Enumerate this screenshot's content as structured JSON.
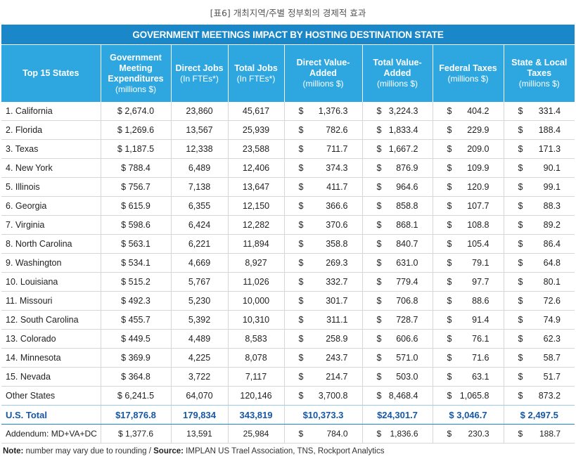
{
  "caption": "[표6] 개최지역/주별 정부회의 경제적 효과",
  "banner": "GOVERNMENT MEETINGS IMPACT BY HOSTING DESTINATION STATE",
  "columns": [
    {
      "title": "Top 15 States",
      "unit": ""
    },
    {
      "title": "Government Meeting Expenditures",
      "unit": "(millions $)"
    },
    {
      "title": "Direct Jobs",
      "unit": "(In FTEs*)"
    },
    {
      "title": "Total Jobs",
      "unit": "(In FTEs*)"
    },
    {
      "title": "Direct Value-Added",
      "unit": "(millions $)"
    },
    {
      "title": "Total Value-Added",
      "unit": "(millions $)"
    },
    {
      "title": "Federal Taxes",
      "unit": "(millions $)"
    },
    {
      "title": "State & Local Taxes",
      "unit": "(millions $)"
    }
  ],
  "currency_sign": "$",
  "rows": [
    {
      "state": "1. California",
      "exp": "$ 2,674.0",
      "djobs": "23,860",
      "tjobs": "45,617",
      "dva": "1,376.3",
      "tva": "3,224.3",
      "fed": "404.2",
      "sl": "331.4"
    },
    {
      "state": "2. Florida",
      "exp": "$ 1,269.6",
      "djobs": "13,567",
      "tjobs": "25,939",
      "dva": "782.6",
      "tva": "1,833.4",
      "fed": "229.9",
      "sl": "188.4"
    },
    {
      "state": "3. Texas",
      "exp": "$ 1,187.5",
      "djobs": "12,338",
      "tjobs": "23,588",
      "dva": "711.7",
      "tva": "1,667.2",
      "fed": "209.0",
      "sl": "171.3"
    },
    {
      "state": "4. New York",
      "exp": "$ 788.4",
      "djobs": "6,489",
      "tjobs": "12,406",
      "dva": "374.3",
      "tva": "876.9",
      "fed": "109.9",
      "sl": "90.1"
    },
    {
      "state": "5. Illinois",
      "exp": "$ 756.7",
      "djobs": "7,138",
      "tjobs": "13,647",
      "dva": "411.7",
      "tva": "964.6",
      "fed": "120.9",
      "sl": "99.1"
    },
    {
      "state": "6. Georgia",
      "exp": "$ 615.9",
      "djobs": "6,355",
      "tjobs": "12,150",
      "dva": "366.6",
      "tva": "858.8",
      "fed": "107.7",
      "sl": "88.3"
    },
    {
      "state": "7. Virginia",
      "exp": "$ 598.6",
      "djobs": "6,424",
      "tjobs": "12,282",
      "dva": "370.6",
      "tva": "868.1",
      "fed": "108.8",
      "sl": "89.2"
    },
    {
      "state": "8. North Carolina",
      "exp": "$ 563.1",
      "djobs": "6,221",
      "tjobs": "11,894",
      "dva": "358.8",
      "tva": "840.7",
      "fed": "105.4",
      "sl": "86.4"
    },
    {
      "state": "9. Washington",
      "exp": "$ 534.1",
      "djobs": "4,669",
      "tjobs": "8,927",
      "dva": "269.3",
      "tva": "631.0",
      "fed": "79.1",
      "sl": "64.8"
    },
    {
      "state": "10. Louisiana",
      "exp": "$ 515.2",
      "djobs": "5,767",
      "tjobs": "11,026",
      "dva": "332.7",
      "tva": "779.4",
      "fed": "97.7",
      "sl": "80.1"
    },
    {
      "state": "11. Missouri",
      "exp": "$ 492.3",
      "djobs": "5,230",
      "tjobs": "10,000",
      "dva": "301.7",
      "tva": "706.8",
      "fed": "88.6",
      "sl": "72.6"
    },
    {
      "state": "12. South Carolina",
      "exp": "$ 455.7",
      "djobs": "5,392",
      "tjobs": "10,310",
      "dva": "311.1",
      "tva": "728.7",
      "fed": "91.4",
      "sl": "74.9"
    },
    {
      "state": "13. Colorado",
      "exp": "$ 449.5",
      "djobs": "4,489",
      "tjobs": "8,583",
      "dva": "258.9",
      "tva": "606.6",
      "fed": "76.1",
      "sl": "62.3"
    },
    {
      "state": "14. Minnesota",
      "exp": "$ 369.9",
      "djobs": "4,225",
      "tjobs": "8,078",
      "dva": "243.7",
      "tva": "571.0",
      "fed": "71.6",
      "sl": "58.7"
    },
    {
      "state": "15. Nevada",
      "exp": "$ 364.8",
      "djobs": "3,722",
      "tjobs": "7,117",
      "dva": "214.7",
      "tva": "503.0",
      "fed": "63.1",
      "sl": "51.7"
    }
  ],
  "other": {
    "state": "Other States",
    "exp": "$ 6,241.5",
    "djobs": "64,070",
    "tjobs": "120,146",
    "dva": "3,700.8",
    "tva": "8,468.4",
    "fed": "1,065.8",
    "sl": "873.2"
  },
  "total": {
    "state": "U.S. Total",
    "exp": "$17,876.8",
    "djobs": "179,834",
    "tjobs": "343,819",
    "dva": "$10,373.3",
    "tva": "$24,301.7",
    "fed": "$ 3,046.7",
    "sl": "$ 2,497.5"
  },
  "addendum": {
    "state": "Addendum: MD+VA+DC",
    "exp": "$ 1,377.6",
    "djobs": "13,591",
    "tjobs": "25,984",
    "dva": "784.0",
    "tva": "1,836.6",
    "fed": "230.3",
    "sl": "188.7"
  },
  "footnote": {
    "note_label": "Note:",
    "note_text": " number may vary due to rounding / ",
    "source_label": "Source:",
    "source_text": " IMPLAN US Trael Association, TNS, Rockport Analytics"
  }
}
